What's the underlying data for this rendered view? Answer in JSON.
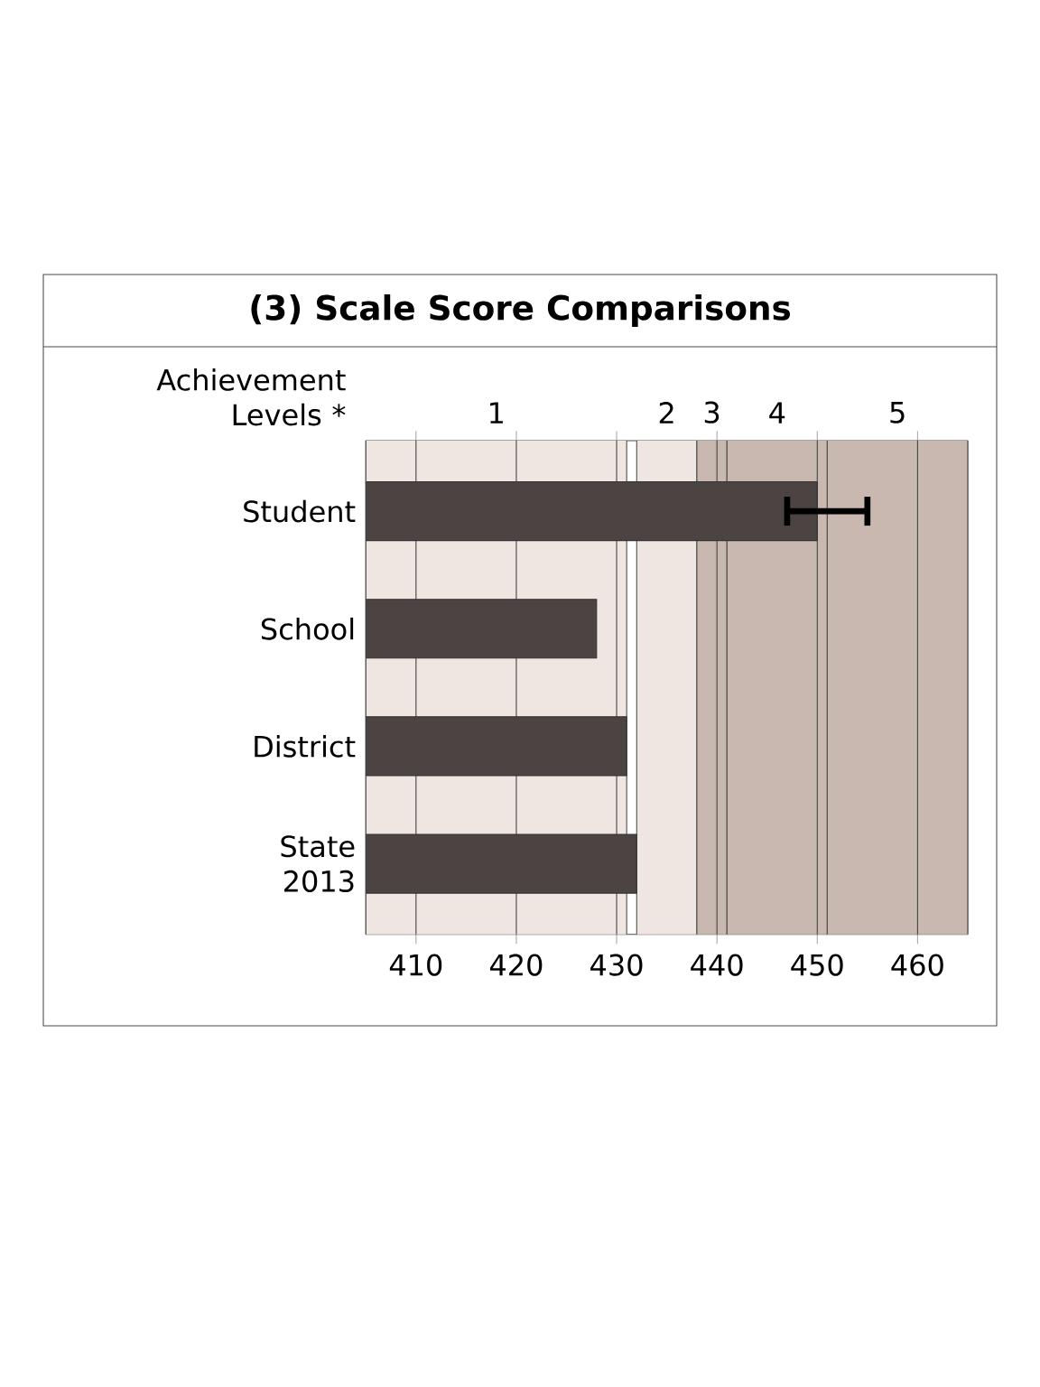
{
  "chart_data": {
    "type": "bar",
    "orientation": "horizontal",
    "title": "(3)  Scale Score Comparisons",
    "annotations": [
      "Achievement Levels *"
    ],
    "categories": [
      "Student",
      "School",
      "District",
      "State 2013"
    ],
    "values": [
      450,
      428,
      431,
      432
    ],
    "errors": [
      [
        447,
        455
      ],
      null,
      null,
      null
    ],
    "color": "#4b4442",
    "xlim": [
      405,
      465
    ],
    "xticks": [
      410,
      420,
      430,
      440,
      450,
      460
    ],
    "grid": "x",
    "bands": [
      {
        "axis": "x",
        "from": 405,
        "to": 431,
        "label": "1",
        "color": "#efe6e1"
      },
      {
        "axis": "x",
        "from": 432,
        "to": 438,
        "label": "2",
        "color": "#efe6e1"
      },
      {
        "axis": "x",
        "from": 438,
        "to": 441,
        "label": "3",
        "color": "#c8b8b0"
      },
      {
        "axis": "x",
        "from": 441,
        "to": 451,
        "label": "4",
        "color": "#c8b8b0"
      },
      {
        "axis": "x",
        "from": 451,
        "to": 465,
        "label": "5",
        "color": "#c8b8b0"
      }
    ]
  }
}
